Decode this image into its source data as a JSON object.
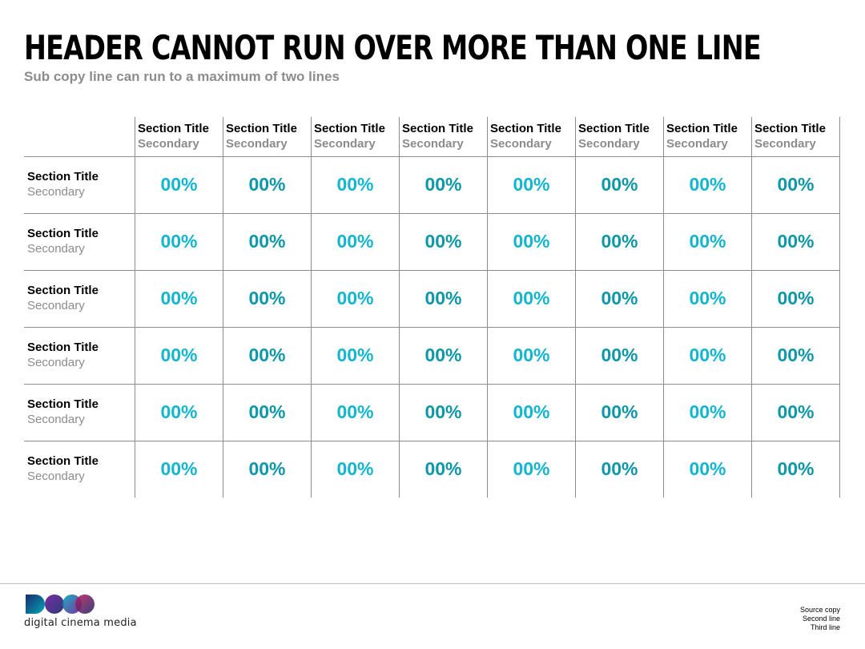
{
  "header": {
    "title": "HEADER CANNOT RUN OVER MORE THAN ONE LINE",
    "subcopy": "Sub copy line can run to a maximum of two lines"
  },
  "table": {
    "columns": [
      {
        "title": "Section Title",
        "secondary": "Secondary"
      },
      {
        "title": "Section Title",
        "secondary": "Secondary"
      },
      {
        "title": "Section Title",
        "secondary": "Secondary"
      },
      {
        "title": "Section Title",
        "secondary": "Secondary"
      },
      {
        "title": "Section Title",
        "secondary": "Secondary"
      },
      {
        "title": "Section Title",
        "secondary": "Secondary"
      },
      {
        "title": "Section Title",
        "secondary": "Secondary"
      },
      {
        "title": "Section Title",
        "secondary": "Secondary"
      }
    ],
    "rows": [
      {
        "title": "Section Title",
        "secondary": "Secondary",
        "values": [
          "00%",
          "00%",
          "00%",
          "00%",
          "00%",
          "00%",
          "00%",
          "00%"
        ]
      },
      {
        "title": "Section Title",
        "secondary": "Secondary",
        "values": [
          "00%",
          "00%",
          "00%",
          "00%",
          "00%",
          "00%",
          "00%",
          "00%"
        ]
      },
      {
        "title": "Section Title",
        "secondary": "Secondary",
        "values": [
          "00%",
          "00%",
          "00%",
          "00%",
          "00%",
          "00%",
          "00%",
          "00%"
        ]
      },
      {
        "title": "Section Title",
        "secondary": "Secondary",
        "values": [
          "00%",
          "00%",
          "00%",
          "00%",
          "00%",
          "00%",
          "00%",
          "00%"
        ]
      },
      {
        "title": "Section Title",
        "secondary": "Secondary",
        "values": [
          "00%",
          "00%",
          "00%",
          "00%",
          "00%",
          "00%",
          "00%",
          "00%"
        ]
      },
      {
        "title": "Section Title",
        "secondary": "Secondary",
        "values": [
          "00%",
          "00%",
          "00%",
          "00%",
          "00%",
          "00%",
          "00%",
          "00%"
        ]
      }
    ],
    "value_colors": [
      "#13b5cf",
      "#0d97a8"
    ]
  },
  "footer": {
    "logo_text": "digital cinema media",
    "logo_colors": [
      "#1a2b6e",
      "#6a1b9a",
      "#00a7b5",
      "#c2185b"
    ],
    "source_lines": [
      "Source copy",
      "Second line",
      "Third line"
    ]
  }
}
